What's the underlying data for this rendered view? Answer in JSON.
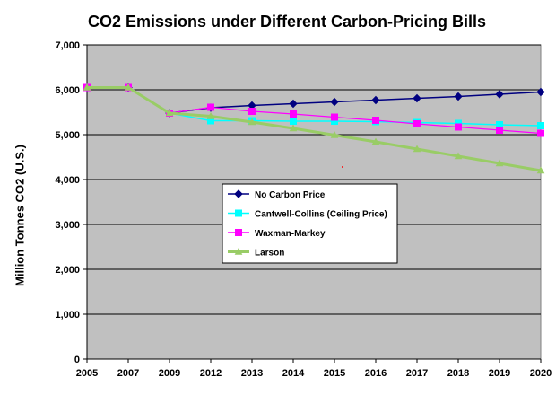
{
  "chart_data": {
    "type": "line",
    "title": "CO2 Emissions under Different Carbon-Pricing Bills",
    "xlabel": "",
    "ylabel": "Million Tonnes CO2 (U.S.)",
    "ylim": [
      0,
      7000
    ],
    "yticks": [
      "0",
      "1,000",
      "2,000",
      "3,000",
      "4,000",
      "5,000",
      "6,000",
      "7,000"
    ],
    "categories": [
      "2005",
      "2007",
      "2009",
      "2012",
      "2013",
      "2014",
      "2015",
      "2016",
      "2017",
      "2018",
      "2019",
      "2020"
    ],
    "grid": true,
    "legend_position": "center",
    "plot_background": "#c0c0c0",
    "series": [
      {
        "name": "No Carbon Price",
        "color": "#000080",
        "marker": "diamond",
        "values": [
          6050,
          6050,
          5480,
          5600,
          5650,
          5690,
          5730,
          5770,
          5810,
          5850,
          5900,
          5950
        ]
      },
      {
        "name": "Cantwell-Collins (Ceiling Price)",
        "color": "#00ffff",
        "marker": "square",
        "values": [
          6050,
          6050,
          5480,
          5310,
          5310,
          5300,
          5300,
          5290,
          5270,
          5250,
          5220,
          5200
        ]
      },
      {
        "name": "Waxman-Markey",
        "color": "#ff00ff",
        "marker": "square",
        "values": [
          6050,
          6050,
          5480,
          5610,
          5520,
          5460,
          5390,
          5320,
          5240,
          5170,
          5100,
          5030
        ]
      },
      {
        "name": "Larson",
        "color": "#99cc66",
        "marker": "triangle",
        "values": [
          6050,
          6050,
          5480,
          5410,
          5280,
          5140,
          4990,
          4840,
          4680,
          4520,
          4360,
          4200
        ]
      }
    ]
  }
}
